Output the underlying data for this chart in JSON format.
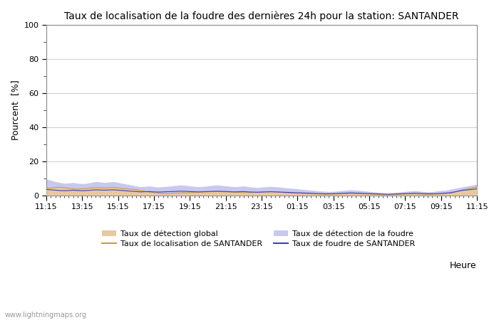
{
  "title": "Taux de localisation de la foudre des dernières 24h pour la station: SANTANDER",
  "xlabel": "Heure",
  "ylabel": "Pourcent  [%]",
  "ylim": [
    0,
    100
  ],
  "yticks": [
    0,
    20,
    40,
    60,
    80,
    100
  ],
  "yticks_minor": [
    10,
    30,
    50,
    70,
    90
  ],
  "background_color": "#ffffff",
  "plot_bg_color": "#ffffff",
  "x_labels": [
    "11:15",
    "13:15",
    "15:15",
    "17:15",
    "19:15",
    "21:15",
    "23:15",
    "01:15",
    "03:15",
    "05:15",
    "07:15",
    "09:15",
    "11:15"
  ],
  "watermark": "www.lightningmaps.org",
  "legend": [
    {
      "label": "Taux de détection global",
      "type": "fill",
      "color": "#e8c8a0",
      "col": 0,
      "row": 0
    },
    {
      "label": "Taux de localisation de SANTANDER",
      "type": "line",
      "color": "#c8a040",
      "col": 1,
      "row": 0
    },
    {
      "label": "Taux de détection de la foudre",
      "type": "fill",
      "color": "#c8c8f0",
      "col": 0,
      "row": 1
    },
    {
      "label": "Taux de foudre de SANTANDER",
      "type": "line",
      "color": "#4040c0",
      "col": 1,
      "row": 1
    }
  ],
  "n_points": 97,
  "detection_global": [
    4.2,
    4.5,
    4.8,
    5.0,
    4.7,
    4.3,
    4.0,
    3.8,
    4.0,
    4.2,
    4.5,
    4.7,
    4.6,
    4.5,
    4.6,
    4.8,
    4.5,
    4.2,
    4.0,
    3.8,
    3.5,
    3.0,
    2.5,
    2.0,
    1.8,
    1.5,
    1.3,
    1.2,
    1.4,
    1.5,
    1.6,
    1.7,
    1.8,
    1.9,
    2.0,
    2.1,
    2.2,
    2.3,
    2.4,
    2.3,
    2.2,
    2.1,
    2.0,
    1.9,
    1.8,
    1.8,
    1.9,
    2.0,
    2.1,
    2.2,
    2.3,
    2.2,
    2.0,
    1.8,
    1.6,
    1.5,
    1.4,
    1.3,
    1.2,
    1.1,
    1.0,
    0.9,
    0.8,
    0.8,
    0.9,
    1.0,
    1.1,
    1.2,
    1.3,
    1.2,
    1.1,
    1.0,
    0.9,
    0.8,
    0.7,
    0.6,
    0.5,
    0.6,
    0.7,
    0.8,
    0.9,
    1.0,
    1.1,
    1.0,
    0.9,
    0.8,
    0.8,
    0.9,
    1.0,
    1.2,
    1.4,
    2.0,
    2.8,
    3.5,
    4.0,
    4.5,
    5.0
  ],
  "detection_foudre": [
    9.5,
    8.8,
    8.0,
    7.5,
    7.0,
    7.2,
    7.5,
    7.0,
    6.8,
    7.0,
    7.5,
    8.0,
    7.8,
    7.5,
    7.8,
    8.0,
    7.5,
    7.0,
    6.5,
    6.0,
    5.5,
    5.0,
    5.2,
    5.5,
    5.0,
    4.8,
    5.0,
    5.2,
    5.5,
    5.8,
    6.0,
    5.8,
    5.5,
    5.2,
    5.0,
    5.2,
    5.5,
    5.8,
    6.0,
    5.8,
    5.5,
    5.2,
    5.0,
    5.2,
    5.5,
    5.0,
    4.8,
    4.5,
    4.8,
    5.0,
    5.2,
    5.0,
    4.8,
    4.5,
    4.2,
    4.0,
    3.8,
    3.5,
    3.2,
    3.0,
    2.8,
    2.5,
    2.3,
    2.2,
    2.3,
    2.5,
    2.8,
    3.0,
    3.2,
    3.0,
    2.8,
    2.5,
    2.3,
    2.0,
    1.8,
    1.5,
    1.3,
    1.5,
    1.8,
    2.0,
    2.3,
    2.5,
    2.8,
    2.5,
    2.2,
    2.0,
    2.2,
    2.5,
    2.8,
    3.0,
    3.5,
    4.0,
    4.5,
    5.0,
    5.5,
    6.0,
    6.5
  ],
  "loc_santander": [
    4.0,
    4.2,
    4.5,
    4.8,
    4.5,
    4.1,
    3.8,
    3.6,
    3.8,
    4.0,
    4.3,
    4.5,
    4.4,
    4.3,
    4.4,
    4.6,
    4.3,
    4.0,
    3.8,
    3.6,
    3.3,
    2.8,
    2.3,
    1.8,
    1.6,
    1.3,
    1.1,
    1.0,
    1.2,
    1.3,
    1.4,
    1.5,
    1.6,
    1.7,
    1.8,
    1.9,
    2.0,
    2.1,
    2.2,
    2.1,
    2.0,
    1.9,
    1.8,
    1.7,
    1.6,
    1.6,
    1.7,
    1.8,
    1.9,
    2.0,
    2.1,
    2.0,
    1.8,
    1.6,
    1.4,
    1.3,
    1.2,
    1.1,
    1.0,
    0.9,
    0.8,
    0.7,
    0.6,
    0.6,
    0.7,
    0.8,
    0.9,
    1.0,
    1.1,
    1.0,
    0.9,
    0.8,
    0.7,
    0.6,
    0.5,
    0.4,
    0.3,
    0.4,
    0.5,
    0.6,
    0.7,
    0.8,
    0.9,
    0.8,
    0.7,
    0.6,
    0.6,
    0.7,
    0.8,
    1.0,
    1.2,
    1.8,
    2.6,
    3.3,
    3.8,
    4.3,
    4.8
  ],
  "foudre_santander": [
    3.5,
    3.2,
    3.0,
    2.8,
    2.7,
    2.8,
    3.0,
    2.8,
    2.7,
    2.8,
    3.0,
    3.2,
    3.1,
    3.0,
    3.1,
    3.2,
    3.0,
    2.8,
    2.6,
    2.4,
    2.2,
    2.0,
    2.1,
    2.2,
    2.0,
    1.9,
    2.0,
    2.1,
    2.2,
    2.3,
    2.4,
    2.3,
    2.2,
    2.1,
    2.0,
    2.1,
    2.2,
    2.3,
    2.4,
    2.3,
    2.2,
    2.1,
    2.0,
    2.1,
    2.2,
    2.0,
    1.9,
    1.8,
    1.9,
    2.0,
    2.1,
    2.0,
    1.9,
    1.8,
    1.7,
    1.6,
    1.5,
    1.4,
    1.3,
    1.2,
    1.1,
    1.0,
    0.9,
    0.9,
    1.0,
    1.1,
    1.2,
    1.3,
    1.4,
    1.3,
    1.2,
    1.1,
    1.0,
    0.9,
    0.8,
    0.7,
    0.6,
    0.7,
    0.8,
    0.9,
    1.0,
    1.1,
    1.2,
    1.1,
    1.0,
    0.9,
    0.9,
    1.0,
    1.1,
    1.3,
    1.5,
    2.0,
    2.5,
    3.0,
    3.2,
    3.5,
    3.8
  ]
}
